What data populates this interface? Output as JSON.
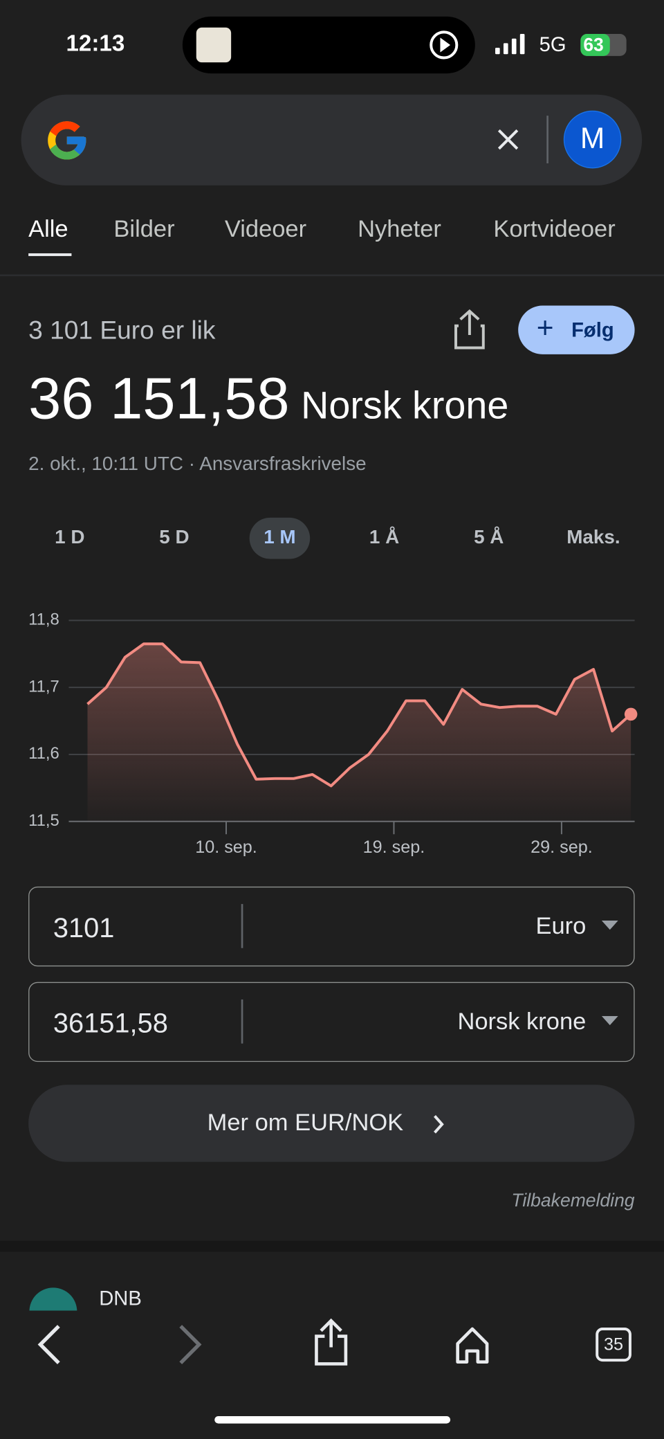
{
  "status_bar": {
    "time": "12:13",
    "network": "5G",
    "battery": "63"
  },
  "search": {
    "avatar": "M"
  },
  "tabs": [
    "Alle",
    "Bilder",
    "Videoer",
    "Nyheter",
    "Kortvideoer"
  ],
  "result": {
    "subtitle": "3 101 Euro er lik",
    "amount": "36 151,58",
    "currency": "Norsk krone",
    "follow": "Følg",
    "timestamp": "2. okt., 10:11 UTC",
    "separator": "·",
    "disclaimer": "Ansvarsfraskrivelse"
  },
  "ranges": [
    "1 D",
    "5 D",
    "1 M",
    "1 Å",
    "5 Å",
    "Maks."
  ],
  "selected_range": 2,
  "chart_data": {
    "type": "line",
    "grid": true,
    "area": true,
    "x": [
      0,
      1,
      2,
      3,
      4,
      5,
      6,
      7,
      8,
      9,
      10,
      11,
      12,
      13,
      14,
      15,
      16,
      17,
      18,
      19,
      20,
      21,
      22,
      23,
      24,
      25,
      26,
      27,
      28,
      29
    ],
    "series": [
      {
        "color": "#f28b82",
        "values": [
          11.675,
          11.7,
          11.745,
          11.765,
          11.765,
          11.738,
          11.737,
          11.68,
          11.615,
          11.563,
          11.564,
          11.564,
          11.57,
          11.553,
          11.58,
          11.6,
          11.635,
          11.68,
          11.68,
          11.645,
          11.697,
          11.675,
          11.67,
          11.672,
          11.672,
          11.66,
          11.712,
          11.727,
          11.635,
          11.66
        ]
      }
    ],
    "xlim": [
      -1,
      29.2
    ],
    "xticks": [
      {
        "value": 7.4,
        "label": "10. sep."
      },
      {
        "value": 16.35,
        "label": "19. sep."
      },
      {
        "value": 25.3,
        "label": "29. sep."
      }
    ],
    "ylim": [
      11.5,
      11.8
    ],
    "yticks": [
      {
        "value": 11.5,
        "label": "11,5"
      },
      {
        "value": 11.6,
        "label": "11,6"
      },
      {
        "value": 11.7,
        "label": "11,7"
      },
      {
        "value": 11.8,
        "label": "11,8"
      }
    ]
  },
  "converter": {
    "from_amount": "3101",
    "from_currency": "Euro",
    "to_amount": "36151,58",
    "to_currency": "Norsk krone"
  },
  "more_button": "Mer om EUR/NOK",
  "feedback": "Tilbakemelding",
  "next_result": "DNB",
  "tab_count": "35"
}
